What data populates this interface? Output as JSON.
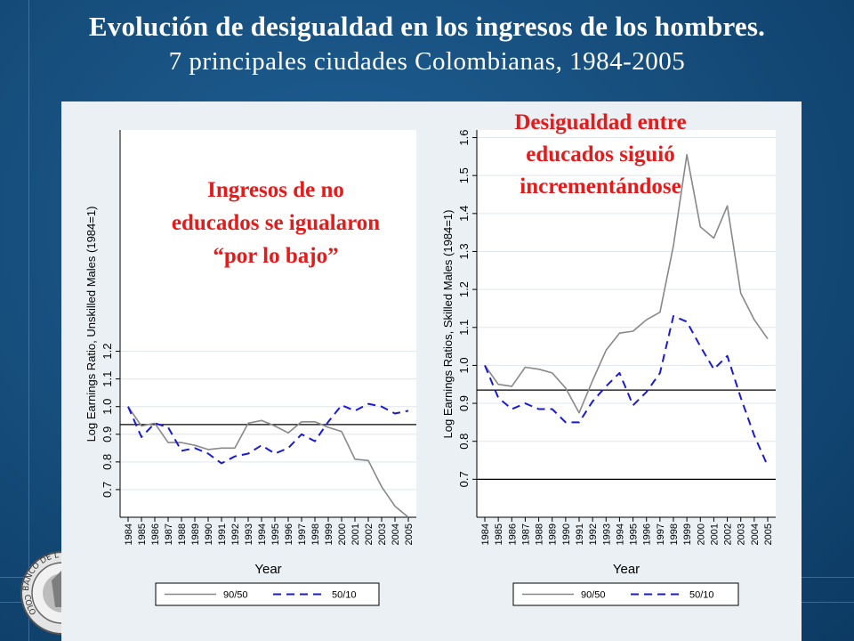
{
  "header": {
    "title": "Evolución de desigualdad en los ingresos de los hombres.",
    "subtitle": "7 principales ciudades Colombianas, 1984-2005"
  },
  "seal": {
    "text_top": "BANCO DE L",
    "text_bottom": "COLO"
  },
  "annotations": {
    "left": [
      "Ingresos de no",
      "educados se igualaron",
      "“por lo bajo”"
    ],
    "right": [
      "Desigualdad entre",
      "educados siguió",
      "incrementándose"
    ]
  },
  "colors": {
    "background": "#17507f",
    "panel": "#eaf0f4",
    "annotation": "#e61a1a",
    "series_90_50": "#888888",
    "series_50_10": "#1a1ad6"
  },
  "chart_data": [
    {
      "type": "line",
      "xlabel": "Year",
      "ylabel": "Log Earnings Ratio, Unskilled Males (1984=1)",
      "x": [
        1984,
        1985,
        1986,
        1987,
        1988,
        1989,
        1990,
        1991,
        1992,
        1993,
        1994,
        1995,
        1996,
        1997,
        1998,
        1999,
        2000,
        2001,
        2002,
        2003,
        2004,
        2005
      ],
      "ylim": [
        0.6,
        2.0
      ],
      "yticks": [
        "0.7",
        "0.8",
        "0.9",
        "1.0",
        "1.1",
        "1.2"
      ],
      "reference_line": 0.935,
      "legend": "bottom",
      "series": [
        {
          "name": "90/50",
          "style": "solid",
          "values": [
            1.0,
            0.93,
            0.94,
            0.87,
            0.87,
            0.86,
            0.845,
            0.85,
            0.85,
            0.94,
            0.95,
            0.93,
            0.905,
            0.945,
            0.945,
            0.925,
            0.91,
            0.81,
            0.805,
            0.71,
            0.64,
            0.6
          ]
        },
        {
          "name": "50/10",
          "style": "dashed",
          "values": [
            1.0,
            0.89,
            0.94,
            0.925,
            0.84,
            0.85,
            0.83,
            0.795,
            0.82,
            0.83,
            0.86,
            0.83,
            0.85,
            0.9,
            0.875,
            0.945,
            1.005,
            0.985,
            1.01,
            1.0,
            0.975,
            0.985
          ]
        }
      ]
    },
    {
      "type": "line",
      "xlabel": "Year",
      "ylabel": "Log Earnings Ratios, Skilled Males (1984=1)",
      "x": [
        1984,
        1985,
        1986,
        1987,
        1988,
        1989,
        1990,
        1991,
        1992,
        1993,
        1994,
        1995,
        1996,
        1997,
        1998,
        1999,
        2000,
        2001,
        2002,
        2003,
        2004,
        2005
      ],
      "ylim": [
        0.6,
        1.62
      ],
      "yticks": [
        "0.7",
        "0.8",
        "0.9",
        "1.0",
        "1.1",
        "1.2",
        "1.3",
        "1.4",
        "1.5",
        "1.6"
      ],
      "reference_lines": [
        0.935,
        0.7
      ],
      "legend": "bottom",
      "series": [
        {
          "name": "90/50",
          "style": "solid",
          "values": [
            1.0,
            0.95,
            0.945,
            0.995,
            0.99,
            0.98,
            0.94,
            0.875,
            0.96,
            1.04,
            1.085,
            1.09,
            1.12,
            1.14,
            1.315,
            1.555,
            1.365,
            1.335,
            1.42,
            1.19,
            1.12,
            1.07
          ]
        },
        {
          "name": "50/10",
          "style": "dashed",
          "values": [
            1.0,
            0.915,
            0.885,
            0.9,
            0.885,
            0.885,
            0.85,
            0.85,
            0.905,
            0.945,
            0.98,
            0.895,
            0.93,
            0.98,
            1.13,
            1.115,
            1.05,
            0.99,
            1.025,
            0.915,
            0.815,
            0.735
          ]
        }
      ]
    }
  ]
}
